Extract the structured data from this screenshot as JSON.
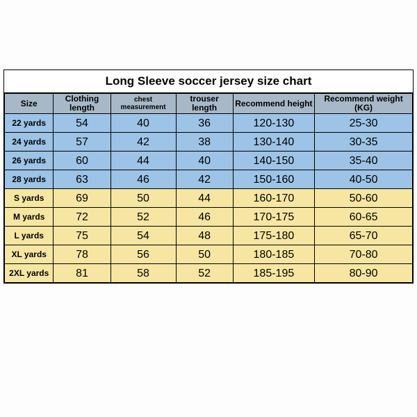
{
  "title": "Long Sleeve soccer jersey size chart",
  "columns": [
    "Size",
    "Clothing length",
    "chest measurement",
    "trouser length",
    "Recommend height",
    "Recommend weight (KG)"
  ],
  "column_widths_pct": [
    12,
    14,
    16,
    14,
    20,
    24
  ],
  "header_bg": "#a7b9c8",
  "group_colors": {
    "blue": "#9dc3e6",
    "yellow": "#f6e6a2"
  },
  "border_color": "#000000",
  "title_fontsize_pt": 13,
  "header_fontsize_pt": 9,
  "cell_fontsize_pt": 12,
  "rows": [
    {
      "group": "blue",
      "size": "22 yards",
      "clothing_length": "54",
      "chest": "40",
      "trouser": "36",
      "height": "120-130",
      "weight": "25-30"
    },
    {
      "group": "blue",
      "size": "24 yards",
      "clothing_length": "57",
      "chest": "42",
      "trouser": "38",
      "height": "130-140",
      "weight": "30-35"
    },
    {
      "group": "blue",
      "size": "26 yards",
      "clothing_length": "60",
      "chest": "44",
      "trouser": "40",
      "height": "140-150",
      "weight": "35-40"
    },
    {
      "group": "blue",
      "size": "28 yards",
      "clothing_length": "63",
      "chest": "46",
      "trouser": "42",
      "height": "150-160",
      "weight": "40-50"
    },
    {
      "group": "yellow",
      "size": "S yards",
      "clothing_length": "69",
      "chest": "50",
      "trouser": "44",
      "height": "160-170",
      "weight": "50-60"
    },
    {
      "group": "yellow",
      "size": "M yards",
      "clothing_length": "72",
      "chest": "52",
      "trouser": "46",
      "height": "170-175",
      "weight": "60-65"
    },
    {
      "group": "yellow",
      "size": "L yards",
      "clothing_length": "75",
      "chest": "54",
      "trouser": "48",
      "height": "175-180",
      "weight": "65-70"
    },
    {
      "group": "yellow",
      "size": "XL yards",
      "clothing_length": "78",
      "chest": "56",
      "trouser": "50",
      "height": "180-185",
      "weight": "70-80"
    },
    {
      "group": "yellow",
      "size": "2XL yards",
      "clothing_length": "81",
      "chest": "58",
      "trouser": "52",
      "height": "185-195",
      "weight": "80-90"
    }
  ]
}
